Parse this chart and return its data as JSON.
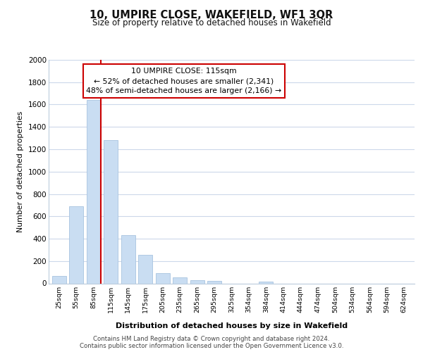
{
  "title": "10, UMPIRE CLOSE, WAKEFIELD, WF1 3QR",
  "subtitle": "Size of property relative to detached houses in Wakefield",
  "xlabel": "Distribution of detached houses by size in Wakefield",
  "ylabel": "Number of detached properties",
  "bar_color": "#c9ddf2",
  "bar_edge_color": "#a8c4e0",
  "vline_color": "#cc0000",
  "annotation_text": "10 UMPIRE CLOSE: 115sqm\n← 52% of detached houses are smaller (2,341)\n48% of semi-detached houses are larger (2,166) →",
  "annotation_box_color": "#ffffff",
  "annotation_box_edge": "#cc0000",
  "categories": [
    "25sqm",
    "55sqm",
    "85sqm",
    "115sqm",
    "145sqm",
    "175sqm",
    "205sqm",
    "235sqm",
    "265sqm",
    "295sqm",
    "325sqm",
    "354sqm",
    "384sqm",
    "414sqm",
    "444sqm",
    "474sqm",
    "504sqm",
    "534sqm",
    "564sqm",
    "594sqm",
    "624sqm"
  ],
  "values": [
    65,
    690,
    1640,
    1285,
    430,
    255,
    90,
    52,
    30,
    22,
    0,
    0,
    15,
    0,
    0,
    0,
    0,
    0,
    0,
    0,
    0
  ],
  "ylim": [
    0,
    2000
  ],
  "yticks": [
    0,
    200,
    400,
    600,
    800,
    1000,
    1200,
    1400,
    1600,
    1800,
    2000
  ],
  "footer": "Contains HM Land Registry data © Crown copyright and database right 2024.\nContains public sector information licensed under the Open Government Licence v3.0.",
  "background_color": "#ffffff",
  "grid_color": "#ccd8ea"
}
